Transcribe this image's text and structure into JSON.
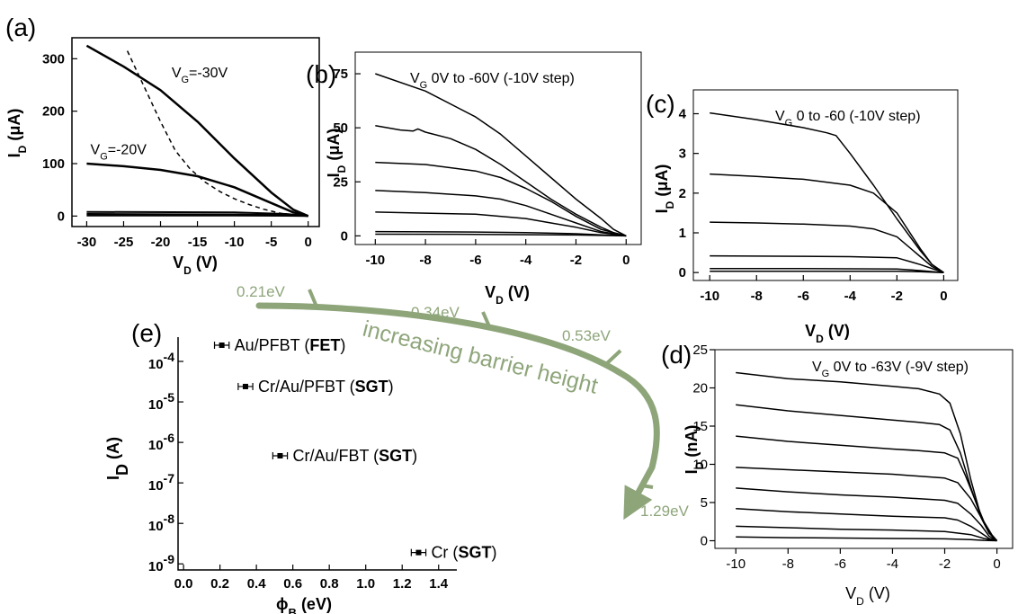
{
  "chart_data": [
    {
      "id": "a",
      "panel_label": "(a)",
      "type": "line",
      "xlabel": "V_D (V)",
      "ylabel": "I_D (μA)",
      "xlim": [
        -32,
        1.5
      ],
      "ylim": [
        -20,
        340
      ],
      "xticks": [
        -30,
        -25,
        -20,
        -15,
        -10,
        -5,
        0
      ],
      "yticks": [
        0,
        100,
        200,
        300
      ],
      "annotations": [
        {
          "text": "V_G=-30V",
          "x": -18.5,
          "y": 265
        },
        {
          "text": "V_G=-20V",
          "x": -29.5,
          "y": 118
        }
      ],
      "series": [
        {
          "style": "solid",
          "width": 2.5,
          "x": [
            -30,
            -25,
            -20,
            -15,
            -10,
            -5,
            -2,
            0
          ],
          "y": [
            325,
            285,
            240,
            180,
            110,
            45,
            12,
            0
          ]
        },
        {
          "style": "solid",
          "width": 2.5,
          "x": [
            -30,
            -25,
            -20,
            -15,
            -10,
            -5,
            -2,
            0
          ],
          "y": [
            100,
            95,
            88,
            76,
            55,
            25,
            7,
            0
          ]
        },
        {
          "style": "solid",
          "width": 2,
          "x": [
            -30,
            -10,
            -3,
            0
          ],
          "y": [
            8,
            7,
            4,
            0
          ]
        },
        {
          "style": "solid",
          "width": 2,
          "x": [
            -30,
            -10,
            -3,
            0
          ],
          "y": [
            4,
            3,
            2,
            0
          ]
        },
        {
          "style": "solid",
          "width": 2,
          "x": [
            -30,
            -10,
            -3,
            0
          ],
          "y": [
            1,
            1,
            0.5,
            0
          ]
        },
        {
          "style": "dashed",
          "width": 1.5,
          "x": [
            -24.5,
            -22,
            -20,
            -18,
            -16,
            -14,
            -12,
            -10,
            -8,
            -6,
            -4,
            -2
          ],
          "y": [
            315,
            240,
            180,
            125,
            90,
            65,
            47,
            33,
            22,
            13,
            6,
            1
          ]
        }
      ]
    },
    {
      "id": "b",
      "panel_label": "(b)",
      "type": "line",
      "xlabel": "V_D (V)",
      "ylabel": "I_D (μA)",
      "title": "V_G 0V to -60V (-10V step)",
      "xlim": [
        -10.8,
        0.6
      ],
      "ylim": [
        -4,
        85
      ],
      "xticks": [
        -10,
        -8,
        -6,
        -4,
        -2,
        0
      ],
      "yticks": [
        0,
        25,
        50,
        75
      ],
      "series": [
        {
          "x": [
            -10,
            -8,
            -6,
            -5,
            -4,
            -3,
            -2,
            -1,
            -0.5,
            0
          ],
          "y": [
            75,
            67,
            55,
            47,
            37,
            27,
            17,
            8,
            3,
            0
          ]
        },
        {
          "x": [
            -10,
            -9,
            -8.5,
            -8.3,
            -8,
            -7,
            -6,
            -5,
            -4,
            -3,
            -2,
            -1,
            -0.5,
            0
          ],
          "y": [
            51,
            49,
            48.5,
            49.5,
            48,
            45,
            40,
            33,
            25,
            17,
            10,
            4,
            1.5,
            0
          ]
        },
        {
          "x": [
            -10,
            -8,
            -6,
            -5,
            -4,
            -3,
            -2,
            -1,
            0
          ],
          "y": [
            34,
            33,
            30,
            27,
            22,
            16,
            9,
            3,
            0
          ]
        },
        {
          "x": [
            -10,
            -8,
            -6,
            -5,
            -4,
            -3,
            -2,
            -1,
            0
          ],
          "y": [
            21,
            20,
            18.5,
            17,
            14,
            10,
            6,
            2,
            0
          ]
        },
        {
          "x": [
            -10,
            -8,
            -6,
            -4,
            -3,
            -2,
            -1,
            0
          ],
          "y": [
            11,
            10.5,
            10,
            8,
            6,
            4,
            1.5,
            0
          ]
        },
        {
          "x": [
            -10,
            -6,
            -4,
            -2,
            -1,
            0
          ],
          "y": [
            2,
            1.8,
            1.5,
            1,
            0.5,
            0
          ]
        },
        {
          "x": [
            -10,
            -6,
            -2,
            0
          ],
          "y": [
            0.8,
            0.7,
            0.4,
            0
          ]
        }
      ]
    },
    {
      "id": "c",
      "panel_label": "(c)",
      "type": "line",
      "xlabel": "V_D (V)",
      "ylabel": "I_D (μA)",
      "title": "V_G 0 to -60 (-10V step)",
      "xlim": [
        -10.7,
        0.6
      ],
      "ylim": [
        -0.2,
        4.6
      ],
      "xticks": [
        -10,
        -8,
        -6,
        -4,
        -2,
        0
      ],
      "yticks": [
        0,
        1,
        2,
        3,
        4
      ],
      "series": [
        {
          "x": [
            -10,
            -8,
            -6,
            -5,
            -4.6,
            -4,
            -3,
            -2,
            -1,
            -0.5,
            0
          ],
          "y": [
            4.02,
            3.85,
            3.65,
            3.52,
            3.45,
            3.0,
            2.2,
            1.35,
            0.55,
            0.2,
            0
          ]
        },
        {
          "x": [
            -10,
            -8,
            -6,
            -4,
            -3,
            -2,
            -1,
            -0.5,
            0
          ],
          "y": [
            2.48,
            2.42,
            2.35,
            2.2,
            2.0,
            1.5,
            0.6,
            0.2,
            0
          ]
        },
        {
          "x": [
            -10,
            -8,
            -6,
            -4,
            -3,
            -2,
            -1,
            -0.5,
            0
          ],
          "y": [
            1.27,
            1.25,
            1.22,
            1.17,
            1.1,
            0.9,
            0.4,
            0.15,
            0
          ]
        },
        {
          "x": [
            -10,
            -6,
            -4,
            -2,
            -1,
            0
          ],
          "y": [
            0.42,
            0.41,
            0.4,
            0.37,
            0.2,
            0
          ]
        },
        {
          "x": [
            -10,
            -6,
            -2,
            -1,
            0
          ],
          "y": [
            0.1,
            0.1,
            0.09,
            0.05,
            0
          ]
        },
        {
          "x": [
            -10,
            -6,
            -2,
            -1,
            0
          ],
          "y": [
            0.03,
            0.03,
            0.03,
            0.02,
            0
          ]
        }
      ]
    },
    {
      "id": "d",
      "panel_label": "(d)",
      "type": "line",
      "xlabel": "V_D (V)",
      "ylabel": "I_D (nA)",
      "title": "V_G 0V to -63V (-9V step)",
      "xlim": [
        -10.8,
        0.6
      ],
      "ylim": [
        -1,
        25
      ],
      "xticks": [
        -10,
        -8,
        -6,
        -4,
        -2,
        0
      ],
      "yticks": [
        0,
        5,
        10,
        15,
        20,
        25
      ],
      "series": [
        {
          "x": [
            -10,
            -8,
            -6,
            -4,
            -3,
            -2.2,
            -1.8,
            -1.4,
            -1,
            -0.6,
            -0.3,
            0
          ],
          "y": [
            22,
            21.2,
            20.8,
            20.2,
            19.9,
            19.2,
            18,
            14,
            8,
            3,
            1,
            0
          ]
        },
        {
          "x": [
            -10,
            -8,
            -6,
            -4,
            -3,
            -2.2,
            -1.8,
            -1.4,
            -1,
            -0.6,
            -0.3,
            0
          ],
          "y": [
            17.8,
            17,
            16.4,
            15.8,
            15.5,
            15.2,
            14.5,
            11.5,
            7,
            3,
            1,
            0
          ]
        },
        {
          "x": [
            -10,
            -8,
            -6,
            -4,
            -3,
            -2,
            -1.5,
            -1.2,
            -0.8,
            -0.5,
            -0.2,
            0
          ],
          "y": [
            13.7,
            13,
            12.5,
            12,
            11.8,
            11.5,
            10.8,
            8.5,
            5,
            2.5,
            0.8,
            0
          ]
        },
        {
          "x": [
            -10,
            -8,
            -6,
            -4,
            -2,
            -1.5,
            -1,
            -0.6,
            -0.3,
            0
          ],
          "y": [
            9.6,
            9.3,
            9,
            8.7,
            8.2,
            7.6,
            5.5,
            3,
            1,
            0
          ]
        },
        {
          "x": [
            -10,
            -8,
            -6,
            -4,
            -2,
            -1.5,
            -1,
            -0.6,
            -0.3,
            0
          ],
          "y": [
            6.9,
            6.4,
            6,
            5.7,
            5.3,
            4.9,
            3.5,
            2,
            0.6,
            0
          ]
        },
        {
          "x": [
            -10,
            -8,
            -6,
            -4,
            -2,
            -1.5,
            -1,
            -0.6,
            -0.3,
            0
          ],
          "y": [
            4.2,
            3.8,
            3.5,
            3.2,
            3,
            2.7,
            1.9,
            1,
            0.3,
            0
          ]
        },
        {
          "x": [
            -10,
            -8,
            -6,
            -4,
            -2,
            -1,
            -0.5,
            0
          ],
          "y": [
            1.9,
            1.7,
            1.5,
            1.4,
            1.2,
            0.8,
            0.3,
            0
          ]
        },
        {
          "x": [
            -10,
            -8,
            -6,
            -4,
            -2,
            -1,
            -0.5,
            0
          ],
          "y": [
            0.5,
            0.4,
            0.35,
            0.3,
            0.25,
            0.15,
            0.05,
            0
          ]
        }
      ]
    },
    {
      "id": "e",
      "panel_label": "(e)",
      "type": "scatter",
      "xlabel": "ϕ_B (eV)",
      "ylabel": "I_D (A)",
      "yscale": "log",
      "xlim": [
        -0.03,
        1.5
      ],
      "ylim_exp": [
        -9.15,
        -3.4
      ],
      "xticks": [
        0.0,
        0.2,
        0.4,
        0.6,
        0.8,
        1.0,
        1.2,
        1.4
      ],
      "xtick_labels": [
        "0.0",
        "0.2",
        "0.4",
        "0.6",
        "0.8",
        "1.0",
        "1.2",
        "1.4"
      ],
      "ytick_exps": [
        -9,
        -8,
        -7,
        -6,
        -5,
        -4
      ],
      "points": [
        {
          "x": 0.21,
          "y_exp": -3.6,
          "xerr": 0.04,
          "label_plain": "Au/PFBT (",
          "label_bold": "FET",
          "label_end": ")"
        },
        {
          "x": 0.34,
          "y_exp": -4.62,
          "xerr": 0.04,
          "label_plain": "Cr/Au/PFBT (",
          "label_bold": "SGT",
          "label_end": ")"
        },
        {
          "x": 0.53,
          "y_exp": -6.33,
          "xerr": 0.04,
          "label_plain": "Cr/Au/FBT (",
          "label_bold": "SGT",
          "label_end": ")"
        },
        {
          "x": 1.29,
          "y_exp": -8.72,
          "xerr": 0.04,
          "label_plain": "Cr (",
          "label_bold": "SGT",
          "label_end": ")"
        }
      ]
    }
  ],
  "overlay": {
    "arrow_label": "increasing barrier height",
    "barrier_labels": [
      "0.21eV",
      "0.34eV",
      "0.53eV",
      "1.29eV"
    ],
    "color": "#8ea57a"
  }
}
